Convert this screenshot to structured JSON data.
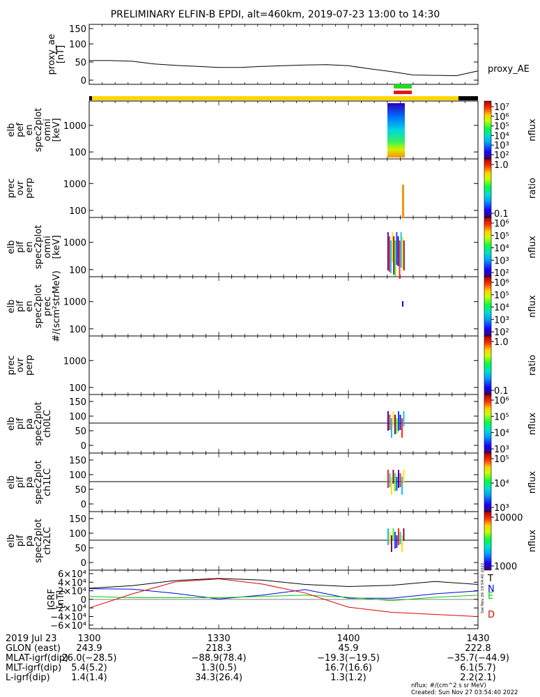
{
  "title": "PRELIMINARY ELFIN-B EPDI, alt=460km, 2019-07-23 13:00 to 14:30",
  "colors": {
    "status_bar": "#ffd700",
    "status_end": "#000000",
    "marker_top": "#22dd22",
    "marker_bottom": "#ee1111",
    "T": "#000000",
    "N": "#0000dd",
    "E": "#00cc00",
    "D": "#dd0000"
  },
  "panels": [
    {
      "id": "proxy_ae",
      "ylabel": [
        "proxy_ae",
        "[nT]"
      ],
      "yticks": [
        "150",
        "100",
        "50",
        "0"
      ],
      "right_label": "proxy_AE"
    },
    {
      "id": "pef_en",
      "ylabel": [
        "elb",
        "pef",
        "en",
        "spec2plot",
        "omni",
        "[keV]"
      ],
      "yticks": [
        "1000",
        "100"
      ]
    },
    {
      "id": "pef_prec_ratio",
      "ylabel": [
        "prec",
        "ovr",
        "perp"
      ],
      "yticks": [
        "1000",
        "100"
      ]
    },
    {
      "id": "pif_en",
      "ylabel": [
        "elb",
        "pif",
        "en",
        "spec2plot",
        "omni",
        "[keV]"
      ],
      "yticks": [
        "1000",
        "100"
      ]
    },
    {
      "id": "pif_prec",
      "ylabel": [
        "elb",
        "pif",
        "en",
        "spec2plot",
        "prec",
        "#/(scm²strMeV)"
      ],
      "yticks": [
        "1000",
        "100"
      ]
    },
    {
      "id": "pif_prec_ratio",
      "ylabel": [
        "prec",
        "ovr",
        "perp"
      ],
      "yticks": [
        "1000",
        "100"
      ]
    },
    {
      "id": "pa_ch0",
      "ylabel": [
        "elb",
        "pif",
        "pa",
        "spec2plot",
        "ch0LC"
      ],
      "yticks": [
        "150",
        "100",
        "50",
        "0"
      ]
    },
    {
      "id": "pa_ch1",
      "ylabel": [
        "elb",
        "pif",
        "pa",
        "spec2plot",
        "ch1LC"
      ],
      "yticks": [
        "150",
        "100",
        "50",
        "0"
      ]
    },
    {
      "id": "pa_ch2",
      "ylabel": [
        "elb",
        "pif",
        "pa",
        "spec2plot",
        "ch2LC"
      ],
      "yticks": [
        "150",
        "100",
        "50",
        "0"
      ]
    },
    {
      "id": "igrf",
      "ylabel": [
        "IGRF",
        "[nT]"
      ],
      "yticks": [
        "6×10⁴",
        "4×10⁴",
        "2×10⁴",
        "0",
        "−2×10⁴",
        "−4×10⁴",
        "−6×10⁴"
      ]
    }
  ],
  "colorbars": [
    {
      "label": "nflux",
      "ticks": [
        "10⁷",
        "10⁶",
        "10⁵",
        "10⁴",
        "10³",
        "10²"
      ]
    },
    {
      "label": "ratio",
      "ticks": [
        "1.0",
        "0.1"
      ]
    },
    {
      "label": "nflux",
      "ticks": [
        "10⁶",
        "10⁵",
        "10⁴",
        "10³",
        "10²"
      ]
    },
    {
      "label": "nflux",
      "ticks": [
        "10⁶",
        "10⁵",
        "10⁴",
        "10³",
        "10²"
      ]
    },
    {
      "label": "ratio",
      "ticks": [
        "1.0",
        "0.1"
      ]
    },
    {
      "label": "nflux",
      "ticks": [
        "10⁶",
        "10⁵",
        "10⁴",
        "10³"
      ]
    },
    {
      "label": "nflux",
      "ticks": [
        "10⁵",
        "10⁴",
        "10³"
      ]
    },
    {
      "label": "nflux",
      "ticks": [
        "10000",
        "1000"
      ]
    }
  ],
  "igrf_legend": [
    "T",
    "N",
    "E",
    "D"
  ],
  "table": {
    "rows": [
      [
        "2019 Jul 23",
        "1300",
        "1330",
        "1400",
        "1430"
      ],
      [
        "GLON (east)",
        "243.9",
        "218.3",
        "45.9",
        "222.8"
      ],
      [
        "MLAT-igrf(dip)",
        "26.0(−28.5)",
        "−88.9(78.4)",
        "−19.3(−19.5)",
        "−35.7(−44.9)"
      ],
      [
        "MLT-igrf(dip)",
        "5.4(5.2)",
        "1.3(0.5)",
        "16.7(16.6)",
        "6.1(5.7)"
      ],
      [
        "L-igrf(dip)",
        "1.4(1.4)",
        "34.3(26.4)",
        "1.3(1.2)",
        "2.2(2.1)"
      ]
    ]
  },
  "footer": {
    "unit": "nflux: #/(cm^2 s sr MeV)",
    "created": "Created: Sun Nov 27 03:54:40 2022",
    "side_stamp": "Sat Nov 26 19:54:40 2022"
  },
  "chart_data": {
    "type": "line",
    "title": "PRELIMINARY ELFIN-B EPDI, alt=460km, 2019-07-23 13:00 to 14:30",
    "x_ticks": [
      "1300",
      "1330",
      "1400",
      "1430"
    ],
    "proxy_ae": {
      "x": [
        "13:00",
        "13:05",
        "13:10",
        "13:15",
        "13:20",
        "13:25",
        "13:30",
        "13:35",
        "13:40",
        "13:45",
        "13:50",
        "13:55",
        "14:00",
        "14:05",
        "14:10",
        "14:15",
        "14:20",
        "14:25",
        "14:30"
      ],
      "values": [
        57,
        57,
        55,
        47,
        43,
        40,
        37,
        37,
        40,
        42,
        44,
        45,
        42,
        33,
        25,
        15,
        14,
        13,
        27
      ],
      "ylim": [
        0,
        150
      ]
    },
    "igrf": {
      "x_minutes": [
        0,
        10,
        20,
        30,
        40,
        50,
        60,
        70,
        80,
        90
      ],
      "series": [
        {
          "name": "T",
          "values": [
            26000,
            32000,
            44000,
            49000,
            45000,
            35000,
            30000,
            33000,
            42000,
            35000
          ]
        },
        {
          "name": "N",
          "values": [
            25000,
            24000,
            14000,
            1000,
            10000,
            23000,
            3000,
            3000,
            13000,
            20000
          ]
        },
        {
          "name": "E",
          "values": [
            7000,
            4000,
            4000,
            4000,
            7000,
            10000,
            5000,
            -3000,
            5000,
            10000
          ]
        },
        {
          "name": "D",
          "values": [
            -20000,
            13000,
            41000,
            48000,
            36000,
            15000,
            -18000,
            -30000,
            -35000,
            -40000
          ]
        }
      ],
      "ylim": [
        -60000,
        60000
      ]
    },
    "spectrogram_interval": [
      "14:10",
      "14:15"
    ]
  }
}
